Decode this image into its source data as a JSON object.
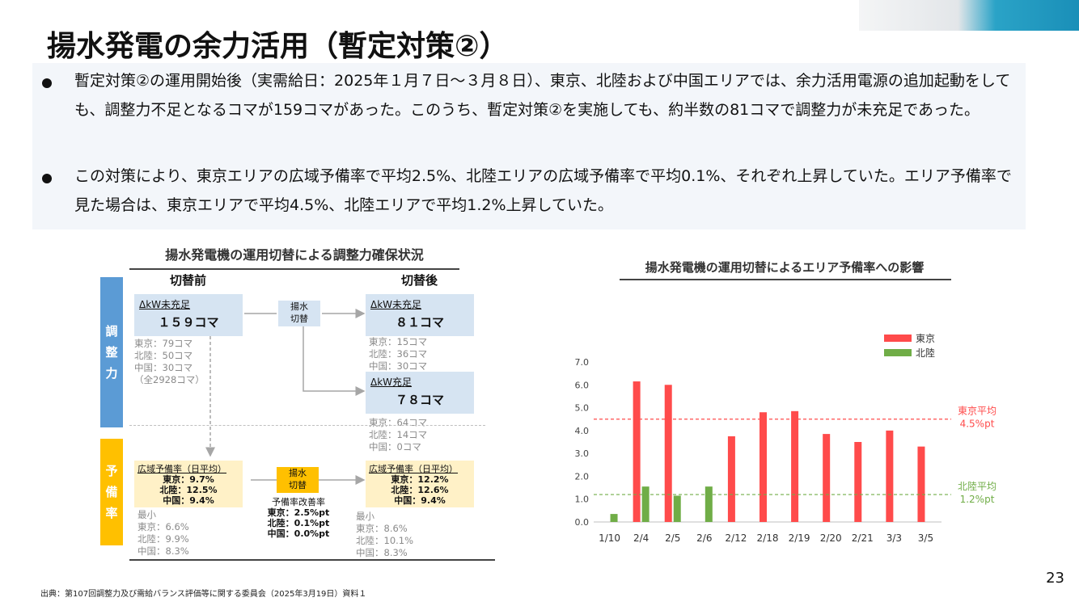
{
  "title": "揚水発電の余力活用（暫定対策②）",
  "bullets": [
    "暫定対策②の運用開始後（実需給日：2025年１月７日～３月８日）、東京、北陸および中国エリアでは、余力活用電源の追加起動をしても、調整力不足となるコマが159コマがあった。このうち、暫定対策②を実施しても、約半数の81コマで調整力が未充足であった。",
    "この対策により、東京エリアの広域予備率で平均2.5%、北陸エリアの広域予備率で平均0.1%、それぞれ上昇していた。エリア予備率で見た場合は、東京エリアで平均4.5%、北陸エリアで平均1.2%上昇していた。"
  ],
  "diagram": {
    "title": "揚水発電機の運用切替による調整力確保状況",
    "before_header": "切替前",
    "after_header": "切替後",
    "band_adjust": "調\n整\n力",
    "band_reserve": "予\n備\n率",
    "before_box_label": "ΔkW未充足",
    "before_box_value": "１５９コマ",
    "before_breakdown": "東京：79コマ\n北陸：50コマ\n中国：30コマ\n（全2928コマ）",
    "switch_label": "揚水\n切替",
    "after_unmet_label": "ΔkW未充足",
    "after_unmet_value": "８１コマ",
    "after_unmet_breakdown": "東京：15コマ\n北陸：36コマ\n中国：30コマ",
    "after_met_label": "ΔkW充足",
    "after_met_value": "７８コマ",
    "after_met_breakdown": "東京：64コマ\n北陸：14コマ\n中国：0コマ",
    "reserve_before_label": "広域予備率（日平均）",
    "reserve_before_values": "東京：9.7%\n北陸：12.5%\n中国：9.4%",
    "reserve_before_min": "最小\n東京：6.6%\n北陸：9.9%\n中国：8.3%",
    "reserve_after_label": "広域予備率（日平均）",
    "reserve_after_values": "東京：12.2%\n北陸：12.6%\n中国：9.4%",
    "reserve_after_min": "最小\n東京：8.6%\n北陸：10.1%\n中国：8.3%",
    "improve_title": "予備率改善率",
    "improve_values": "東京：2.5%pt\n北陸：0.1%pt\n中国：0.0%pt"
  },
  "chart_data": {
    "type": "bar",
    "title": "揚水発電機の運用切替によるエリア予備率への影響",
    "categories": [
      "1/10",
      "2/4",
      "2/5",
      "2/6",
      "2/12",
      "2/18",
      "2/19",
      "2/20",
      "2/21",
      "3/3",
      "3/5"
    ],
    "series": [
      {
        "name": "東京",
        "color": "#ff4b4b",
        "values": [
          null,
          6.15,
          6.0,
          null,
          3.75,
          4.8,
          4.85,
          3.85,
          3.5,
          4.0,
          3.3
        ]
      },
      {
        "name": "北陸",
        "color": "#70ad47",
        "values": [
          0.35,
          1.55,
          1.15,
          1.55,
          null,
          null,
          null,
          null,
          null,
          null,
          null
        ]
      }
    ],
    "ylim": [
      0,
      7
    ],
    "yticks": [
      "0.0",
      "1.0",
      "2.0",
      "3.0",
      "4.0",
      "5.0",
      "6.0",
      "7.0"
    ],
    "ref_lines": [
      {
        "name": "東京平均",
        "label": "4.5%pt",
        "value": 4.5,
        "color": "#ff4b4b"
      },
      {
        "name": "北陸平均",
        "label": "1.2%pt",
        "value": 1.2,
        "color": "#70ad47"
      }
    ],
    "legend": "top-right"
  },
  "page_number": "23",
  "source": "出典：第107回調整力及び需給バランス評価等に関する委員会（2025年3月19日）資料１"
}
